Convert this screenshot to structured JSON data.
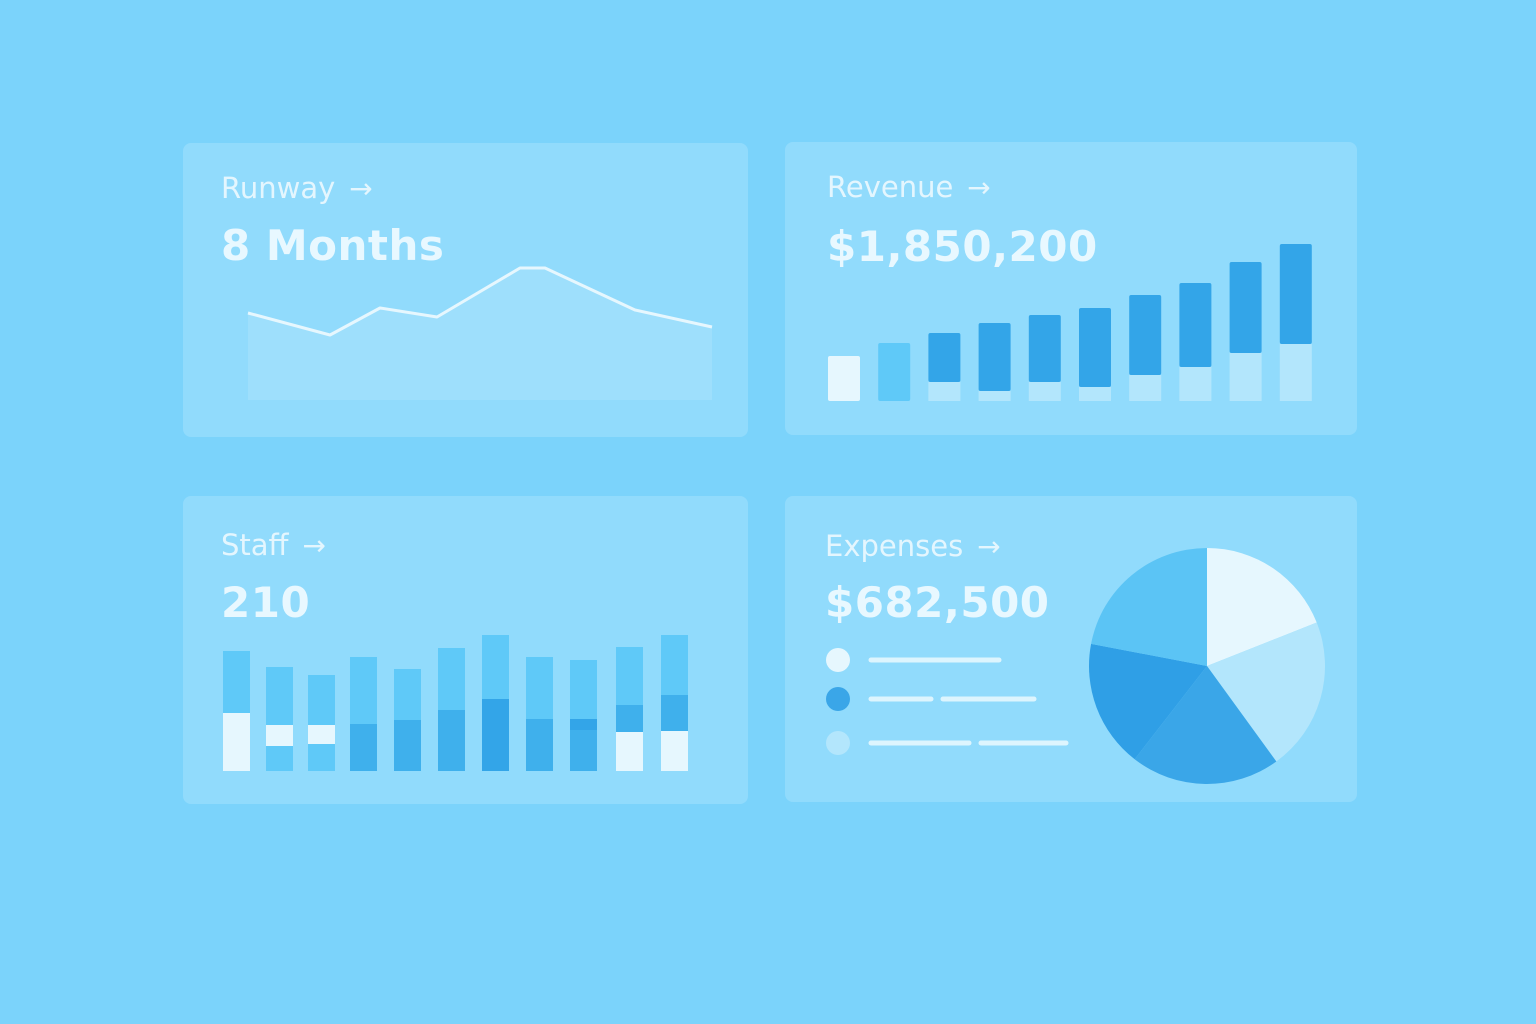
{
  "colors": {
    "background": "#7bd3fb",
    "white": "#e6f7fe",
    "pale": "#b3e6fc",
    "light": "#5fc9f8",
    "mid": "#3fb0ec",
    "dark": "#33a5e8"
  },
  "cards": [
    {
      "title": "Runway",
      "value": "8 Months",
      "icon": "arrow-right-icon"
    },
    {
      "title": "Revenue",
      "value": "$1,850,200",
      "icon": "arrow-right-icon"
    },
    {
      "title": "Staff",
      "value": "210",
      "icon": "arrow-right-icon"
    },
    {
      "title": "Expenses",
      "value": "$682,500",
      "icon": "arrow-right-icon"
    }
  ],
  "chart_data": [
    {
      "type": "area",
      "card": "Runway",
      "values": [
        87,
        65,
        92,
        83,
        132,
        132,
        90,
        73
      ]
    },
    {
      "type": "bar",
      "card": "Revenue",
      "stacked": true,
      "values": [
        45,
        58,
        68,
        78,
        86,
        93,
        106,
        118,
        139,
        157
      ],
      "lower": [
        0,
        0,
        19,
        10,
        19,
        14,
        26,
        34,
        48,
        57
      ],
      "first_bar_colors": [
        "white",
        "light"
      ]
    },
    {
      "type": "bar",
      "card": "Staff",
      "stacked": true,
      "segments": [
        [
          [
            58,
            "white"
          ],
          [
            62,
            "light"
          ]
        ],
        [
          [
            25,
            "light"
          ],
          [
            21,
            "white"
          ],
          [
            58,
            "light"
          ]
        ],
        [
          [
            27,
            "light"
          ],
          [
            19,
            "white"
          ],
          [
            50,
            "light"
          ]
        ],
        [
          [
            47,
            "mid"
          ],
          [
            67,
            "light"
          ]
        ],
        [
          [
            51,
            "mid"
          ],
          [
            51,
            "light"
          ]
        ],
        [
          [
            61,
            "mid"
          ],
          [
            62,
            "light"
          ]
        ],
        [
          [
            72,
            "dark"
          ],
          [
            64,
            "light"
          ]
        ],
        [
          [
            52,
            "mid"
          ],
          [
            62,
            "light"
          ]
        ],
        [
          [
            41,
            "mid"
          ],
          [
            11,
            "dark"
          ],
          [
            59,
            "light"
          ]
        ],
        [
          [
            39,
            "white"
          ],
          [
            27,
            "mid"
          ],
          [
            58,
            "light"
          ]
        ],
        [
          [
            40,
            "white"
          ],
          [
            36,
            "mid"
          ],
          [
            60,
            "light"
          ]
        ]
      ]
    },
    {
      "type": "pie",
      "card": "Expenses",
      "values": [
        19,
        21,
        20.5,
        17.5,
        22
      ],
      "slice_colors": [
        "#e6f7fe",
        "#b3e6fc",
        "#3aa6e8",
        "#2f9fe6",
        "#5bc4f5"
      ],
      "legend_dot_colors": [
        "#e6f7fe",
        "#3aa6e8",
        "#b3e6fc"
      ]
    }
  ]
}
